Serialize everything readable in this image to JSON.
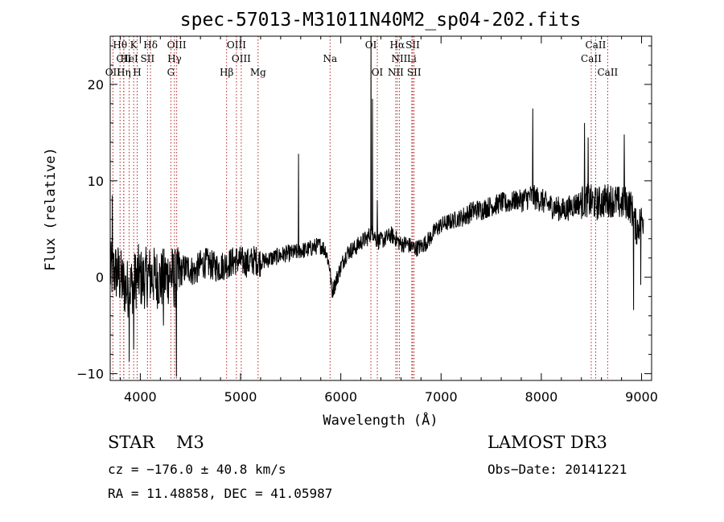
{
  "chart_data": {
    "type": "line",
    "title": "spec-57013-M31011N40M2_sp04-202.fits",
    "xlabel": "Wavelength (Å)",
    "ylabel": "Flux (relative)",
    "xlim": [
      3700,
      9100
    ],
    "ylim": [
      -10.7,
      25
    ],
    "xticks": [
      4000,
      5000,
      6000,
      7000,
      8000,
      9000
    ],
    "yticks": [
      -10,
      0,
      10,
      20
    ],
    "series": [
      {
        "name": "flux",
        "color": "#000000",
        "x": [
          3700,
          3740,
          3780,
          3820,
          3860,
          3900,
          3940,
          3980,
          4020,
          4060,
          4100,
          4150,
          4200,
          4250,
          4300,
          4340,
          4380,
          4420,
          4480,
          4540,
          4600,
          4660,
          4720,
          4780,
          4840,
          4900,
          4960,
          5020,
          5080,
          5140,
          5200,
          5260,
          5320,
          5380,
          5440,
          5500,
          5560,
          5600,
          5650,
          5700,
          5750,
          5800,
          5850,
          5890,
          5910,
          5940,
          5980,
          6020,
          6060,
          6100,
          6140,
          6180,
          6220,
          6260,
          6300,
          6330,
          6360,
          6400,
          6450,
          6500,
          6550,
          6600,
          6650,
          6700,
          6750,
          6800,
          6850,
          6900,
          6950,
          7000,
          7050,
          7100,
          7150,
          7200,
          7250,
          7300,
          7350,
          7400,
          7450,
          7500,
          7550,
          7600,
          7650,
          7700,
          7750,
          7800,
          7850,
          7900,
          7950,
          8000,
          8050,
          8100,
          8150,
          8200,
          8250,
          8300,
          8350,
          8400,
          8450,
          8500,
          8550,
          8600,
          8650,
          8700,
          8750,
          8800,
          8850,
          8900,
          8950,
          9000,
          9020
        ],
        "y": [
          0.5,
          0.6,
          0.4,
          -0.5,
          -1.2,
          -1.0,
          -0.5,
          0.3,
          -0.3,
          0.0,
          0.2,
          0.0,
          -0.3,
          0.0,
          0.4,
          -0.2,
          0.0,
          0.8,
          1.0,
          0.5,
          1.3,
          1.5,
          1.2,
          1.0,
          1.3,
          1.5,
          1.8,
          1.6,
          1.5,
          1.8,
          1.6,
          1.8,
          2.0,
          2.2,
          2.4,
          2.5,
          2.6,
          2.8,
          2.8,
          3.0,
          3.2,
          3.3,
          2.8,
          1.0,
          -1.5,
          -0.8,
          0.5,
          1.6,
          2.5,
          2.8,
          3.0,
          3.4,
          3.8,
          4.0,
          4.6,
          4.5,
          3.8,
          3.8,
          4.0,
          4.4,
          4.0,
          3.4,
          3.5,
          3.2,
          3.0,
          3.2,
          3.6,
          4.2,
          5.0,
          5.4,
          5.6,
          5.8,
          6.0,
          6.2,
          6.4,
          6.8,
          7.0,
          7.0,
          7.2,
          7.4,
          7.5,
          7.8,
          7.6,
          7.8,
          8.0,
          8.0,
          8.2,
          8.4,
          8.2,
          8.0,
          7.6,
          7.4,
          7.2,
          7.0,
          7.0,
          7.4,
          7.6,
          7.8,
          8.0,
          7.8,
          7.6,
          7.8,
          8.0,
          8.0,
          7.8,
          7.6,
          7.8,
          7.2,
          5.0,
          6.0,
          6.0
        ]
      }
    ],
    "spikes": [
      {
        "x": 5577,
        "y": 12.8
      },
      {
        "x": 6300,
        "y": 25.0
      },
      {
        "x": 6315,
        "y": 18.5
      },
      {
        "x": 6363,
        "y": 8.0
      },
      {
        "x": 7913,
        "y": 17.5
      },
      {
        "x": 8430,
        "y": 16.0
      },
      {
        "x": 8465,
        "y": 14.5
      },
      {
        "x": 8827,
        "y": 14.8
      },
      {
        "x": 4358,
        "y": -10.3
      },
      {
        "x": 3888,
        "y": -8.7
      },
      {
        "x": 3933,
        "y": -7.5
      },
      {
        "x": 4230,
        "y": -5.0
      },
      {
        "x": 8920,
        "y": -3.4
      },
      {
        "x": 8990,
        "y": -0.8
      },
      {
        "x": 3720,
        "y": 8.5
      }
    ],
    "line_markers": [
      {
        "label": "Hθ",
        "x": 3798,
        "row": 0
      },
      {
        "label": "CII",
        "x": 3835,
        "row": 1
      },
      {
        "label": "OII",
        "x": 3727,
        "row": 2
      },
      {
        "label": "K",
        "x": 3934,
        "row": 0
      },
      {
        "label": "HeI",
        "x": 3889,
        "row": 1
      },
      {
        "label": "Hη",
        "x": 3835,
        "row": 2
      },
      {
        "label": "Hδ",
        "x": 4102,
        "row": 0
      },
      {
        "label": "SII",
        "x": 4072,
        "row": 1
      },
      {
        "label": "H",
        "x": 3969,
        "row": 2
      },
      {
        "label": "OIII",
        "x": 4363,
        "row": 0
      },
      {
        "label": "Hγ",
        "x": 4341,
        "row": 1
      },
      {
        "label": "G",
        "x": 4305,
        "row": 2
      },
      {
        "label": "OIII",
        "x": 4959,
        "row": 0
      },
      {
        "label": "OIII",
        "x": 5007,
        "row": 1
      },
      {
        "label": "Hβ",
        "x": 4861,
        "row": 2
      },
      {
        "label": "Mg",
        "x": 5175,
        "row": 2
      },
      {
        "label": "Na",
        "x": 5893,
        "row": 1
      },
      {
        "label": "OI",
        "x": 6300,
        "row": 0
      },
      {
        "label": "OI",
        "x": 6364,
        "row": 2
      },
      {
        "label": "Hα",
        "x": 6563,
        "row": 0
      },
      {
        "label": "NII",
        "x": 6584,
        "row": 1
      },
      {
        "label": "NII",
        "x": 6548,
        "row": 2
      },
      {
        "label": "SII",
        "x": 6717,
        "row": 0
      },
      {
        "label": "Li",
        "x": 6708,
        "row": 1
      },
      {
        "label": "SII",
        "x": 6731,
        "row": 2
      },
      {
        "label": "CaII",
        "x": 8542,
        "row": 0
      },
      {
        "label": "CaII",
        "x": 8498,
        "row": 1
      },
      {
        "label": "CaII",
        "x": 8662,
        "row": 2
      }
    ]
  },
  "footer": {
    "object_class": "STAR",
    "subclass": "M3",
    "survey": "LAMOST DR3",
    "redshift": "cz = −176.0 ± 40.8 km/s",
    "obs_date": "Obs−Date: 20141221",
    "coords": "RA =  11.48858, DEC =  41.05987"
  },
  "colors": {
    "axis": "#000000",
    "marker_line": "#b22222",
    "spectrum": "#000000"
  }
}
